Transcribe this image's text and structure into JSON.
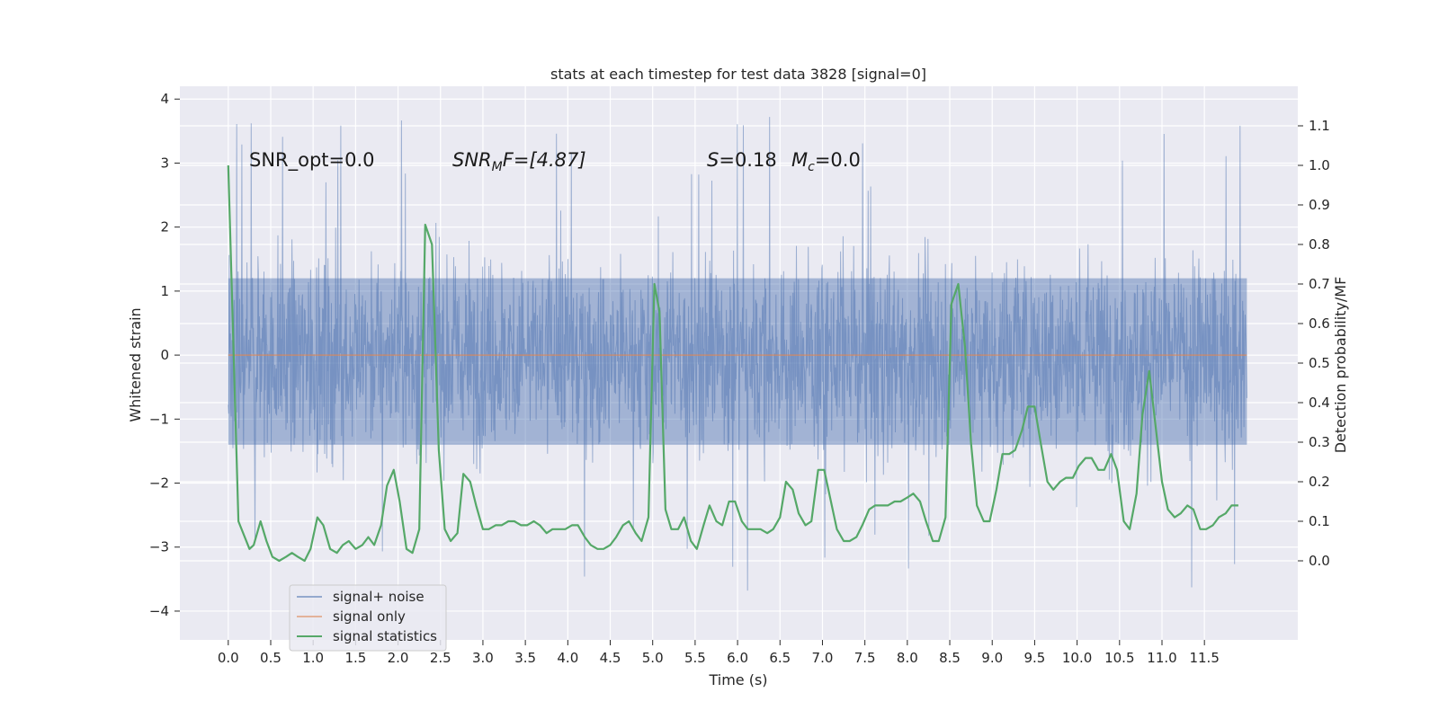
{
  "chart_data": {
    "type": "line",
    "title": "stats at each timestep for test data 3828 [signal=0]",
    "xlabel": "Time (s)",
    "ylabel": "Whitened strain",
    "y2label": "Detection probability/MF",
    "xlim": [
      -0.57,
      12.6
    ],
    "ylim": [
      -4.45,
      4.2
    ],
    "y2lim": [
      -0.2,
      1.2
    ],
    "xticks": [
      0.0,
      0.5,
      1.0,
      1.5,
      2.0,
      2.5,
      3.0,
      3.5,
      4.0,
      4.5,
      5.0,
      5.5,
      6.0,
      6.5,
      7.0,
      7.5,
      8.0,
      8.5,
      9.0,
      9.5,
      10.0,
      10.5,
      11.0,
      11.5
    ],
    "xtick_labels": [
      "0.0",
      "0.5",
      "1.0",
      "1.5",
      "2.0",
      "2.5",
      "3.0",
      "3.5",
      "4.0",
      "4.5",
      "5.0",
      "5.5",
      "6.0",
      "6.5",
      "7.0",
      "7.5",
      "8.0",
      "8.5",
      "9.0",
      "9.5",
      "10.0",
      "10.5",
      "11.0",
      "11.5"
    ],
    "yticks": [
      -4,
      -3,
      -2,
      -1,
      0,
      1,
      2,
      3,
      4
    ],
    "ytick_labels": [
      "−4",
      "−3",
      "−2",
      "−1",
      "0",
      "1",
      "2",
      "3",
      "4"
    ],
    "y2ticks": [
      0.0,
      0.1,
      0.2,
      0.3,
      0.4,
      0.5,
      0.6,
      0.7,
      0.8,
      0.9,
      1.0,
      1.1
    ],
    "y2tick_labels": [
      "0.0",
      "0.1",
      "0.2",
      "0.3",
      "0.4",
      "0.5",
      "0.6",
      "0.7",
      "0.8",
      "0.9",
      "1.0",
      "1.1"
    ],
    "grid": true,
    "legend_position": "lower-left",
    "annotations": {
      "snr_opt": "SNR_opt=0.0",
      "snr_mf_main": "SNR",
      "snr_mf_sub": "M",
      "snr_mf_rest": "F=[4.87]",
      "s_main": "S",
      "s_rest": "=0.18",
      "mc_main": "M",
      "mc_sub": "c",
      "mc_rest": "=0.0"
    },
    "series": [
      {
        "name": "signal+ noise",
        "color": "#4c72b0",
        "axis": "left",
        "duration": 12.0,
        "envelope_upper": 2.6,
        "envelope_lower": -2.6,
        "peak_max": 3.85,
        "peak_min": -4.1,
        "dense_band": [
          -1.4,
          1.2
        ]
      },
      {
        "name": "signal only",
        "color": "#dd8452",
        "axis": "left",
        "x": [
          0.0,
          12.0
        ],
        "y": [
          0.0,
          0.0
        ]
      },
      {
        "name": "signal statistics",
        "color": "#55a868",
        "axis": "right",
        "x": [
          0.0,
          0.12,
          0.25,
          0.3,
          0.38,
          0.45,
          0.52,
          0.6,
          0.68,
          0.75,
          0.82,
          0.9,
          0.97,
          1.05,
          1.12,
          1.2,
          1.28,
          1.35,
          1.42,
          1.5,
          1.58,
          1.65,
          1.72,
          1.8,
          1.87,
          1.95,
          2.02,
          2.1,
          2.17,
          2.25,
          2.32,
          2.4,
          2.48,
          2.55,
          2.62,
          2.7,
          2.77,
          2.85,
          2.92,
          3.0,
          3.07,
          3.15,
          3.22,
          3.3,
          3.37,
          3.45,
          3.52,
          3.6,
          3.67,
          3.75,
          3.82,
          3.9,
          3.97,
          4.05,
          4.12,
          4.2,
          4.27,
          4.35,
          4.42,
          4.5,
          4.57,
          4.65,
          4.72,
          4.8,
          4.87,
          4.95,
          5.02,
          5.08,
          5.15,
          5.22,
          5.3,
          5.37,
          5.45,
          5.52,
          5.6,
          5.67,
          5.75,
          5.82,
          5.9,
          5.97,
          6.05,
          6.12,
          6.2,
          6.27,
          6.35,
          6.42,
          6.5,
          6.57,
          6.65,
          6.72,
          6.8,
          6.87,
          6.95,
          7.02,
          7.1,
          7.17,
          7.25,
          7.32,
          7.4,
          7.47,
          7.55,
          7.62,
          7.7,
          7.77,
          7.85,
          7.92,
          8.0,
          8.07,
          8.15,
          8.22,
          8.3,
          8.37,
          8.45,
          8.52,
          8.6,
          8.68,
          8.75,
          8.82,
          8.9,
          8.97,
          9.05,
          9.12,
          9.2,
          9.27,
          9.35,
          9.42,
          9.5,
          9.57,
          9.65,
          9.72,
          9.8,
          9.87,
          9.95,
          10.02,
          10.1,
          10.17,
          10.25,
          10.32,
          10.4,
          10.47,
          10.55,
          10.62,
          10.7,
          10.77,
          10.85,
          10.92,
          11.0,
          11.07,
          11.15,
          11.22,
          11.3,
          11.37,
          11.45,
          11.52,
          11.6,
          11.67,
          11.75,
          11.82,
          11.9
        ],
        "y": [
          1.0,
          0.1,
          0.03,
          0.04,
          0.1,
          0.05,
          0.01,
          0.0,
          0.01,
          0.02,
          0.01,
          0.0,
          0.03,
          0.11,
          0.09,
          0.03,
          0.02,
          0.04,
          0.05,
          0.03,
          0.04,
          0.06,
          0.04,
          0.09,
          0.19,
          0.23,
          0.15,
          0.03,
          0.02,
          0.08,
          0.85,
          0.8,
          0.28,
          0.08,
          0.05,
          0.07,
          0.22,
          0.2,
          0.14,
          0.08,
          0.08,
          0.09,
          0.09,
          0.1,
          0.1,
          0.09,
          0.09,
          0.1,
          0.09,
          0.07,
          0.08,
          0.08,
          0.08,
          0.09,
          0.09,
          0.06,
          0.04,
          0.03,
          0.03,
          0.04,
          0.06,
          0.09,
          0.1,
          0.07,
          0.05,
          0.11,
          0.7,
          0.63,
          0.13,
          0.08,
          0.08,
          0.11,
          0.05,
          0.03,
          0.09,
          0.14,
          0.1,
          0.09,
          0.15,
          0.15,
          0.1,
          0.08,
          0.08,
          0.08,
          0.07,
          0.08,
          0.11,
          0.2,
          0.18,
          0.12,
          0.09,
          0.1,
          0.23,
          0.23,
          0.15,
          0.08,
          0.05,
          0.05,
          0.06,
          0.09,
          0.13,
          0.14,
          0.14,
          0.14,
          0.15,
          0.15,
          0.16,
          0.17,
          0.15,
          0.1,
          0.05,
          0.05,
          0.11,
          0.65,
          0.7,
          0.54,
          0.3,
          0.14,
          0.1,
          0.1,
          0.18,
          0.27,
          0.27,
          0.28,
          0.33,
          0.39,
          0.39,
          0.3,
          0.2,
          0.18,
          0.2,
          0.21,
          0.21,
          0.24,
          0.26,
          0.26,
          0.23,
          0.23,
          0.27,
          0.23,
          0.1,
          0.08,
          0.17,
          0.37,
          0.48,
          0.35,
          0.2,
          0.13,
          0.11,
          0.12,
          0.14,
          0.13,
          0.08,
          0.08,
          0.09,
          0.11,
          0.12,
          0.14,
          0.14
        ]
      }
    ]
  }
}
